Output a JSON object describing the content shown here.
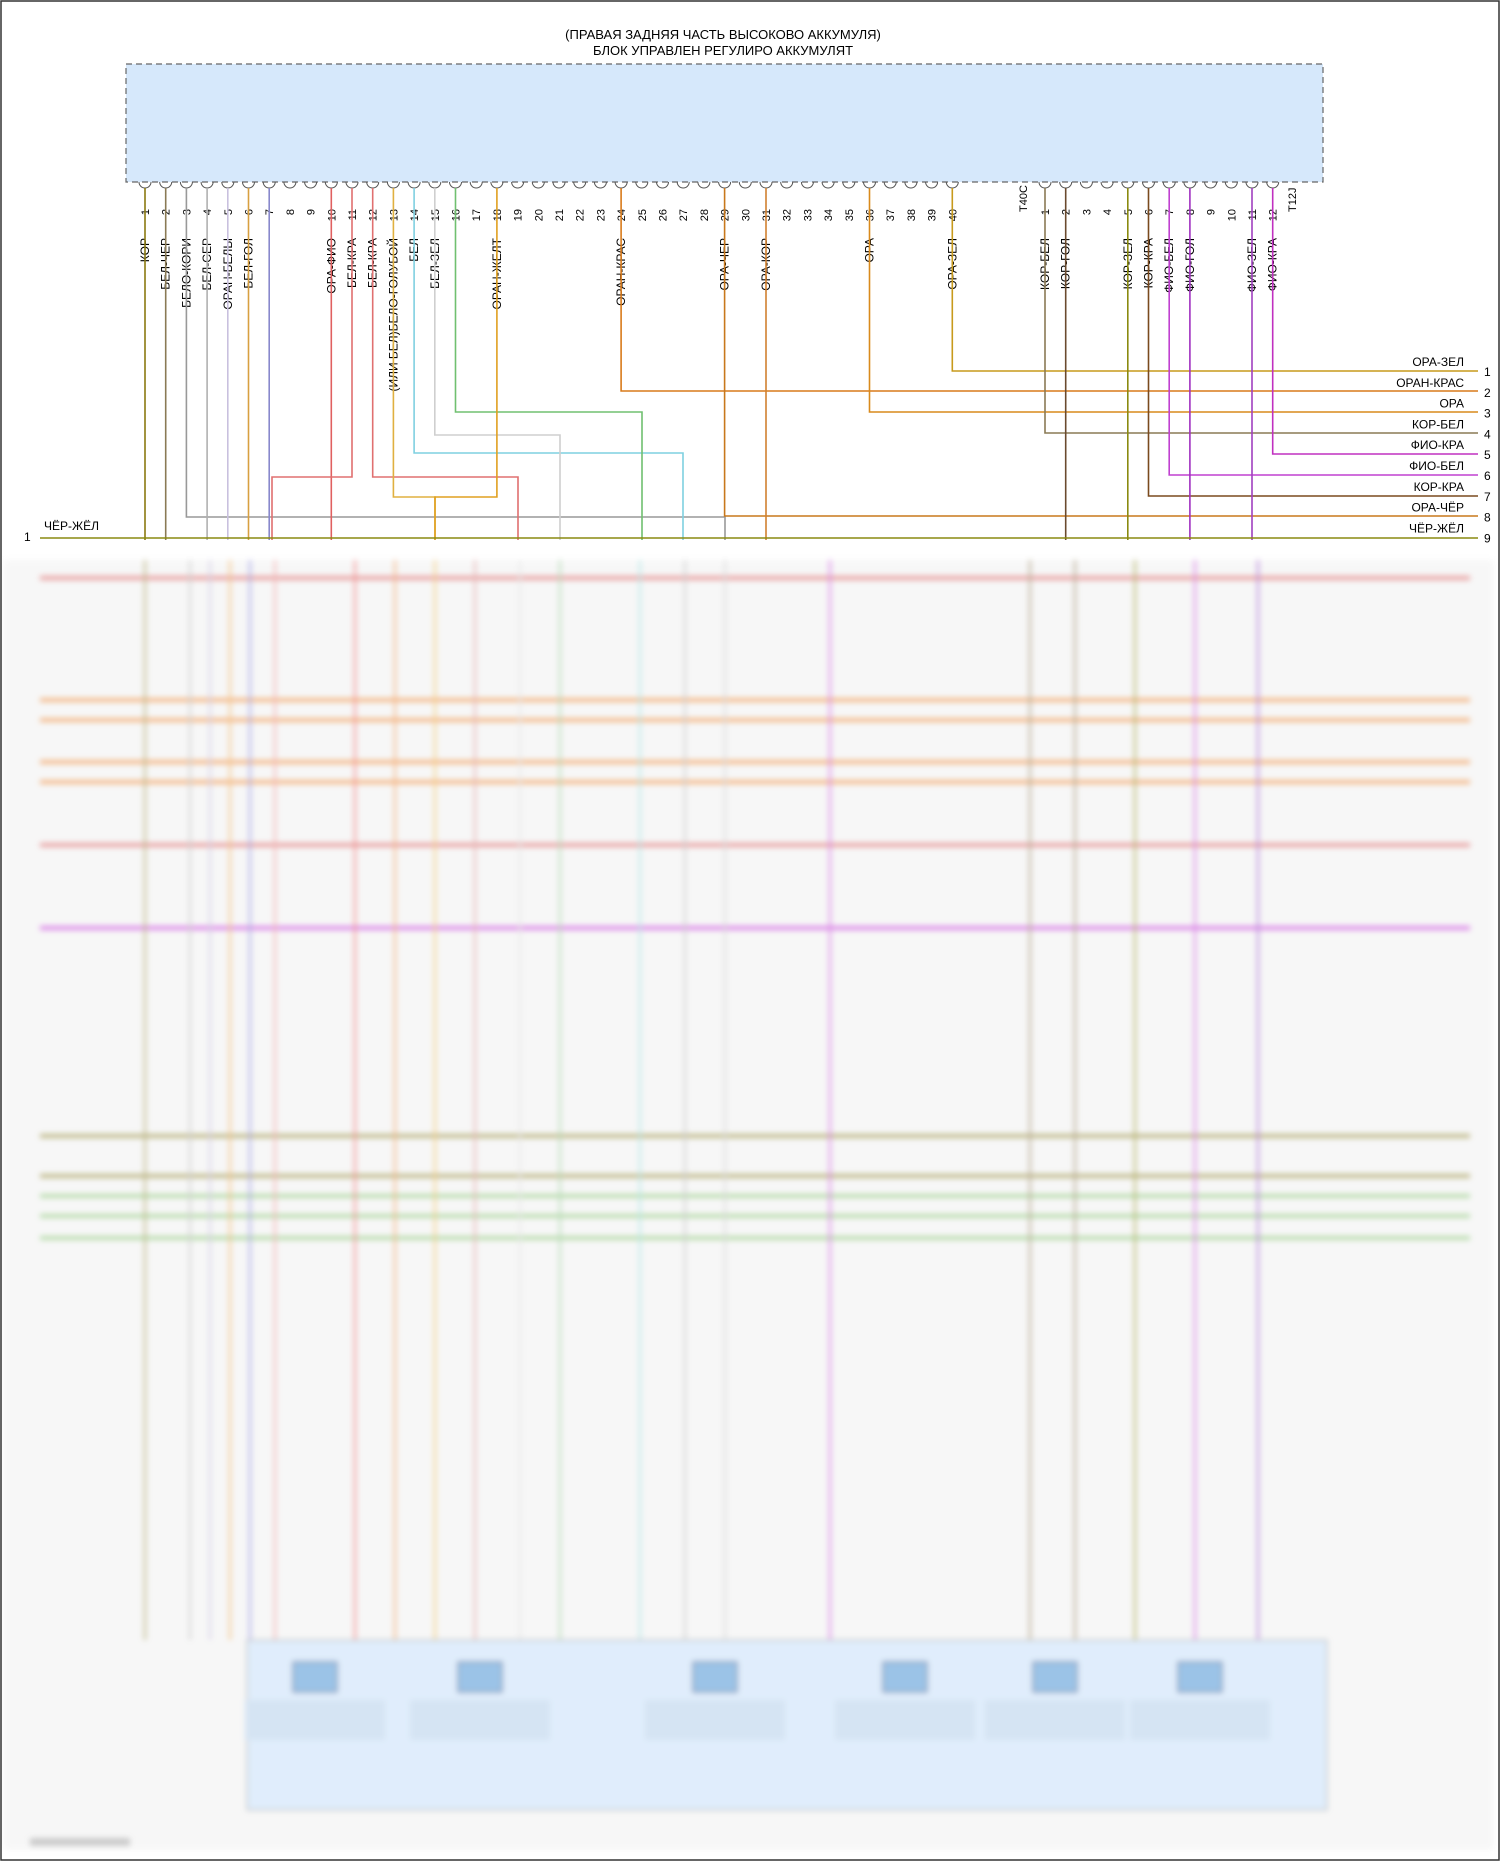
{
  "header": {
    "title_line1": "(ПРАВАЯ ЗАДНЯЯ ЧАСТЬ ВЫСОКОВО АККУМУЛЯ)",
    "title_line2": "БЛОК УПРАВЛЕН РЕГУЛИРО АККУМУЛЯТ"
  },
  "connector_a": {
    "name": "",
    "pins": [
      "1",
      "2",
      "3",
      "4",
      "5",
      "6",
      "7",
      "8",
      "9",
      "10",
      "11",
      "12",
      "13",
      "14",
      "15",
      "16",
      "17",
      "18",
      "19",
      "20",
      "21",
      "22",
      "23",
      "24",
      "25",
      "26",
      "27",
      "28",
      "29",
      "30",
      "31",
      "32",
      "33",
      "34",
      "35",
      "36",
      "37",
      "38",
      "39",
      "40"
    ],
    "suffix": "T40C"
  },
  "connector_b": {
    "pins": [
      "1",
      "2",
      "3",
      "4",
      "5",
      "6",
      "7",
      "8",
      "9",
      "10",
      "11",
      "12"
    ],
    "suffix": "T12J"
  },
  "wire_labels": [
    {
      "pin": "1",
      "text": "КОР"
    },
    {
      "pin": "2",
      "text": "БЕЛ-ЧЕР"
    },
    {
      "pin": "3",
      "text": "БЕЛО-КОРИ"
    },
    {
      "pin": "4",
      "text": "БЕЛ-СЕР"
    },
    {
      "pin": "5",
      "text": "ОРАН-БЕЛЫ"
    },
    {
      "pin": "6",
      "text": "БЕЛ-ГОЛ"
    },
    {
      "pin": "10",
      "text": "ОРА-ФИО"
    },
    {
      "pin": "11",
      "text": "БЕЛ-КРА"
    },
    {
      "pin": "12",
      "text": "БЕЛ-КРА"
    },
    {
      "pin": "13",
      "text": "(ИЛИ БЕЛ)БЕЛО-ГОЛУБОЙ"
    },
    {
      "pin": "14",
      "text": "БЕЛ"
    },
    {
      "pin": "15",
      "text": "БЕЛ-ЗЕЛ"
    },
    {
      "pin": "18",
      "text": "ОРАН-ЖЕЛТ"
    },
    {
      "pin": "24",
      "text": "ОРАН-КРАС"
    },
    {
      "pin": "29",
      "text": "ОРА-ЧЕР"
    },
    {
      "pin": "31",
      "text": "ОРА-КОР"
    },
    {
      "pin": "36",
      "text": "ОРА"
    },
    {
      "pin": "40",
      "text": "ОРА-ЗЕЛ"
    },
    {
      "pin": "b1",
      "text": "КОР-БЕЛ"
    },
    {
      "pin": "b2",
      "text": "КОР-ГОЛ"
    },
    {
      "pin": "b5",
      "text": "КОР-ЗЕЛ"
    },
    {
      "pin": "b6",
      "text": "КОР-КРА"
    },
    {
      "pin": "b7",
      "text": "ФИО-БЕЛ"
    },
    {
      "pin": "b8",
      "text": "ФИО-ГОЛ"
    },
    {
      "pin": "b11",
      "text": "ФИО-ЗЕЛ"
    },
    {
      "pin": "b12",
      "text": "ФИО-КРА"
    }
  ],
  "right_outputs": [
    {
      "num": "1",
      "label": "ОРА-ЗЕЛ",
      "color": "#c79a1c"
    },
    {
      "num": "2",
      "label": "ОРАН-КРАС",
      "color": "#d97a1a"
    },
    {
      "num": "3",
      "label": "ОРА",
      "color": "#d98a1c"
    },
    {
      "num": "4",
      "label": "КОР-БЕЛ",
      "color": "#8a7a55"
    },
    {
      "num": "5",
      "label": "ФИО-КРА",
      "color": "#c030c0"
    },
    {
      "num": "6",
      "label": "ФИО-БЕЛ",
      "color": "#c040d0"
    },
    {
      "num": "7",
      "label": "КОР-КРА",
      "color": "#7a4a1e"
    },
    {
      "num": "8",
      "label": "ОРА-ЧЁР",
      "color": "#c8781c"
    },
    {
      "num": "9",
      "label": "ЧЁР-ЖЁЛ",
      "color": "#8a8a10"
    }
  ],
  "left_input": {
    "num": "1",
    "label": "ЧЁР-ЖЁЛ"
  },
  "colors": {
    "module_fill": "#d6e8fb",
    "module_border": "#6d6d6d",
    "bottom_block": "#d6e8fb"
  }
}
